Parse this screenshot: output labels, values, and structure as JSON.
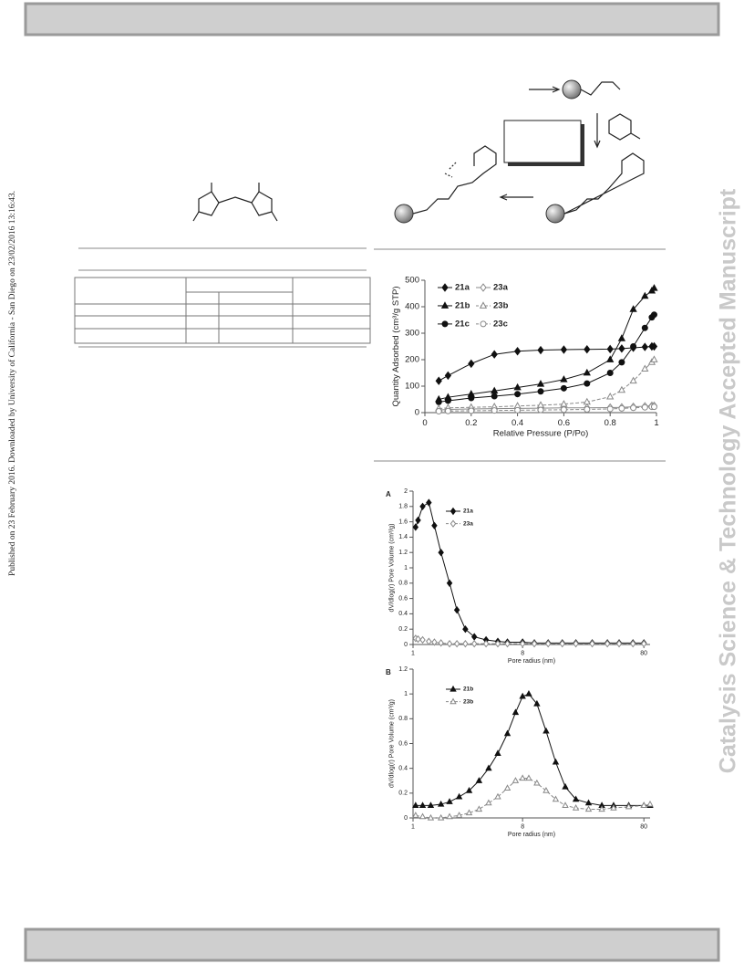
{
  "side_text": "Published on 23 February 2016. Downloaded by University of California - San Diego on 23/02/2016 13:16:43.",
  "watermark": "Catalysis Science & Technology Accepted Manuscript",
  "chart_data": [
    {
      "type": "line",
      "xlabel": "Relative Pressure (P/Po)",
      "ylabel": "Quantity Adsorbed (cm³/g STP)",
      "x": [
        0.06,
        0.1,
        0.2,
        0.3,
        0.4,
        0.5,
        0.6,
        0.7,
        0.8,
        0.85,
        0.9,
        0.95,
        0.98,
        0.99
      ],
      "series": [
        {
          "name": "21a",
          "color": "#111111",
          "marker": "diamond",
          "filled": true,
          "dashed": false,
          "values": [
            120,
            140,
            185,
            220,
            232,
            236,
            238,
            239,
            240,
            242,
            245,
            248,
            250,
            250
          ]
        },
        {
          "name": "21b",
          "color": "#111111",
          "marker": "triangle",
          "filled": true,
          "dashed": false,
          "values": [
            50,
            58,
            70,
            82,
            95,
            108,
            125,
            150,
            200,
            280,
            390,
            440,
            460,
            470
          ]
        },
        {
          "name": "21c",
          "color": "#111111",
          "marker": "circle",
          "filled": true,
          "dashed": false,
          "values": [
            40,
            45,
            55,
            62,
            70,
            80,
            92,
            110,
            150,
            190,
            250,
            320,
            360,
            370
          ]
        },
        {
          "name": "23a",
          "color": "#888888",
          "marker": "diamond",
          "filled": false,
          "dashed": false,
          "values": [
            10,
            12,
            14,
            15,
            16,
            17,
            18,
            18,
            19,
            20,
            22,
            24,
            26,
            26
          ]
        },
        {
          "name": "23b",
          "color": "#888888",
          "marker": "triangle",
          "filled": false,
          "dashed": true,
          "values": [
            15,
            18,
            20,
            22,
            25,
            28,
            32,
            40,
            60,
            85,
            120,
            165,
            190,
            200
          ]
        },
        {
          "name": "23c",
          "color": "#888888",
          "marker": "circle",
          "filled": false,
          "dashed": true,
          "values": [
            5,
            6,
            7,
            8,
            9,
            10,
            11,
            12,
            14,
            16,
            18,
            20,
            22,
            22
          ]
        }
      ],
      "xlim": [
        0,
        1
      ],
      "xticks": [
        0,
        0.2,
        0.4,
        0.6,
        0.8,
        1
      ],
      "ylim": [
        0,
        500
      ],
      "yticks": [
        0,
        100,
        200,
        300,
        400,
        500
      ],
      "legend": "upper left",
      "legend_columns": 2,
      "log_x": false
    },
    {
      "type": "line",
      "panel_label": "A",
      "xlabel": "Pore radius (nm)",
      "ylabel": "dV/dlog(r) Pore Volume (cm³/g)",
      "x": [
        1.05,
        1.1,
        1.2,
        1.35,
        1.5,
        1.7,
        2,
        2.3,
        2.7,
        3.2,
        4,
        5,
        6,
        8,
        10,
        13,
        17,
        22,
        30,
        40,
        50,
        65,
        80
      ],
      "series": [
        {
          "name": "21a",
          "color": "#111111",
          "marker": "diamond",
          "filled": true,
          "dashed": false,
          "values": [
            1.53,
            1.62,
            1.8,
            1.85,
            1.55,
            1.2,
            0.8,
            0.45,
            0.2,
            0.1,
            0.06,
            0.04,
            0.03,
            0.03,
            0.02,
            0.02,
            0.02,
            0.02,
            0.02,
            0.02,
            0.02,
            0.02,
            0.02
          ]
        },
        {
          "name": "23a",
          "color": "#888888",
          "marker": "diamond",
          "filled": false,
          "dashed": true,
          "values": [
            0.08,
            0.07,
            0.06,
            0.04,
            0.03,
            0.02,
            0.01,
            0.01,
            0.01,
            0.01,
            0.01,
            0.01,
            0.01,
            0.01,
            0.01,
            0.01,
            0.01,
            0.01,
            0.01,
            0.01,
            0.01,
            0.01,
            0.01
          ]
        }
      ],
      "xlim": [
        1,
        90
      ],
      "xticks": [
        1,
        8,
        80
      ],
      "log_x": true,
      "ylim": [
        0,
        2
      ],
      "yticks": [
        0,
        0.2,
        0.4,
        0.6,
        0.8,
        1,
        1.2,
        1.4,
        1.6,
        1.8,
        2
      ],
      "legend": "upper left",
      "legend_columns": 1
    },
    {
      "type": "line",
      "panel_label": "B",
      "xlabel": "Pore radius (nm)",
      "ylabel": "dV/dlog(r) Pore Volume (cm³/g)",
      "x": [
        1.05,
        1.2,
        1.4,
        1.7,
        2,
        2.4,
        2.9,
        3.5,
        4.2,
        5,
        6,
        7,
        8,
        9,
        10.5,
        12.5,
        15,
        18,
        22,
        28,
        36,
        45,
        60,
        80,
        90
      ],
      "series": [
        {
          "name": "21b",
          "color": "#111111",
          "marker": "triangle",
          "filled": true,
          "dashed": false,
          "values": [
            0.1,
            0.1,
            0.1,
            0.11,
            0.13,
            0.17,
            0.22,
            0.3,
            0.4,
            0.52,
            0.68,
            0.85,
            0.98,
            1.0,
            0.92,
            0.7,
            0.45,
            0.25,
            0.15,
            0.12,
            0.1,
            0.1,
            0.1,
            0.1,
            0.1
          ]
        },
        {
          "name": "23b",
          "color": "#888888",
          "marker": "triangle",
          "filled": false,
          "dashed": true,
          "values": [
            0.02,
            0.01,
            0,
            0,
            0.01,
            0.02,
            0.04,
            0.07,
            0.12,
            0.17,
            0.24,
            0.3,
            0.32,
            0.32,
            0.28,
            0.22,
            0.15,
            0.1,
            0.08,
            0.07,
            0.07,
            0.08,
            0.09,
            0.1,
            0.11
          ]
        }
      ],
      "xlim": [
        1,
        90
      ],
      "xticks": [
        1,
        8,
        80
      ],
      "log_x": true,
      "ylim": [
        0,
        1.2
      ],
      "yticks": [
        0,
        0.2,
        0.4,
        0.6,
        0.8,
        1,
        1.2
      ],
      "legend": "upper left",
      "legend_columns": 1
    }
  ]
}
